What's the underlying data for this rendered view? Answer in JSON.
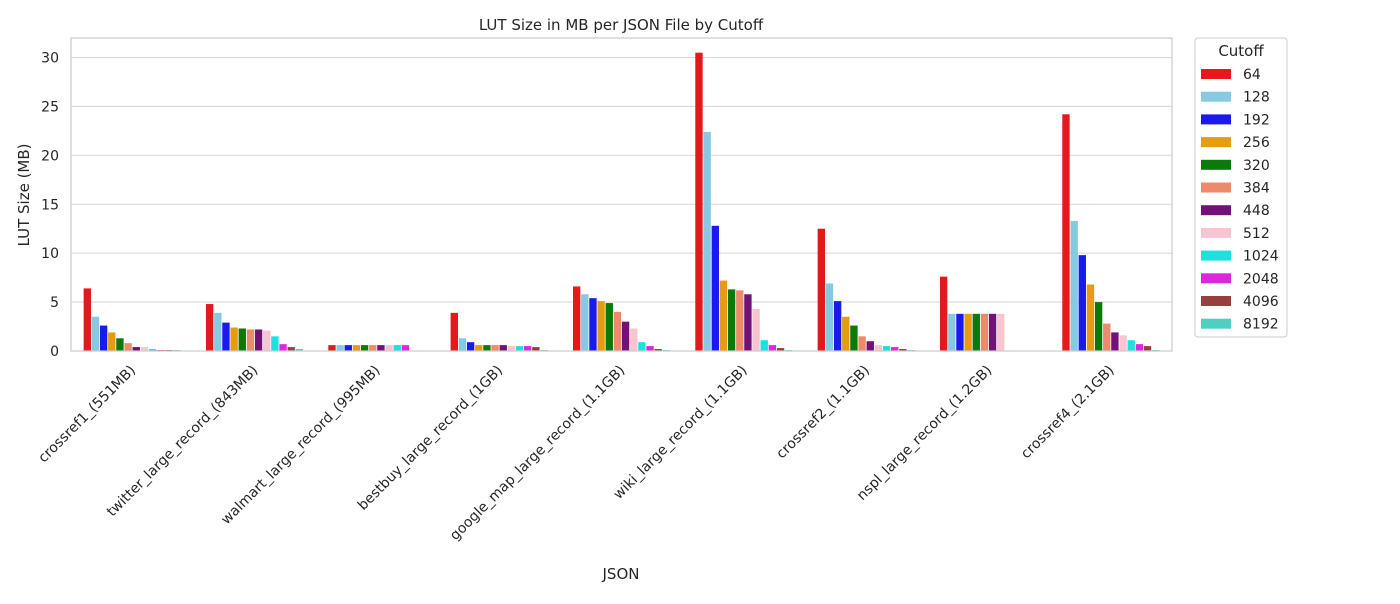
{
  "chart_data": {
    "type": "bar",
    "title": "LUT Size in MB per JSON File by Cutoff",
    "xlabel": "JSON",
    "ylabel": "LUT Size (MB)",
    "ylim": [
      0,
      32
    ],
    "yticks": [
      0,
      5,
      10,
      15,
      20,
      25,
      30
    ],
    "grid": true,
    "legend_title": "Cutoff",
    "legend_position": "outside-top-right",
    "categories": [
      "crossref1_(551MB)",
      "twitter_large_record_(843MB)",
      "walmart_large_record_(995MB)",
      "bestbuy_large_record_(1GB)",
      "google_map_large_record_(1.1GB)",
      "wiki_large_record_(1.1GB)",
      "crossref2_(1.1GB)",
      "nspl_large_record_(1.2GB)",
      "crossref4_(2.1GB)"
    ],
    "series": [
      {
        "name": "64",
        "color": "#e31a1c",
        "values": [
          6.4,
          4.8,
          0.6,
          3.9,
          6.6,
          30.5,
          12.5,
          7.6,
          24.2
        ]
      },
      {
        "name": "128",
        "color": "#87c9e3",
        "values": [
          3.5,
          3.9,
          0.6,
          1.3,
          5.8,
          22.4,
          6.9,
          3.8,
          13.3
        ]
      },
      {
        "name": "192",
        "color": "#1a1aeb",
        "values": [
          2.6,
          2.9,
          0.6,
          0.9,
          5.4,
          12.8,
          5.1,
          3.8,
          9.8
        ]
      },
      {
        "name": "256",
        "color": "#e69b12",
        "values": [
          1.9,
          2.4,
          0.6,
          0.6,
          5.1,
          7.2,
          3.5,
          3.8,
          6.8
        ]
      },
      {
        "name": "320",
        "color": "#0b7a0b",
        "values": [
          1.3,
          2.3,
          0.6,
          0.6,
          4.9,
          6.3,
          2.6,
          3.8,
          5.0
        ]
      },
      {
        "name": "384",
        "color": "#ec8a6b",
        "values": [
          0.8,
          2.2,
          0.6,
          0.6,
          4.0,
          6.2,
          1.5,
          3.8,
          2.8
        ]
      },
      {
        "name": "448",
        "color": "#701276",
        "values": [
          0.4,
          2.2,
          0.6,
          0.6,
          3.0,
          5.8,
          1.0,
          3.8,
          1.9
        ]
      },
      {
        "name": "512",
        "color": "#f7c4d0",
        "values": [
          0.4,
          2.1,
          0.6,
          0.5,
          2.3,
          4.3,
          0.6,
          3.8,
          1.6
        ]
      },
      {
        "name": "1024",
        "color": "#1de0e0",
        "values": [
          0.2,
          1.5,
          0.6,
          0.5,
          0.9,
          1.1,
          0.5,
          0.0,
          1.1
        ]
      },
      {
        "name": "2048",
        "color": "#dd27dd",
        "values": [
          0.1,
          0.7,
          0.6,
          0.5,
          0.5,
          0.6,
          0.4,
          0.0,
          0.7
        ]
      },
      {
        "name": "4096",
        "color": "#973f3f",
        "values": [
          0.1,
          0.4,
          0.0,
          0.4,
          0.2,
          0.3,
          0.2,
          0.0,
          0.5
        ]
      },
      {
        "name": "8192",
        "color": "#4ecfc0",
        "values": [
          0.1,
          0.2,
          0.0,
          0.1,
          0.1,
          0.1,
          0.1,
          0.0,
          0.1
        ]
      }
    ]
  }
}
